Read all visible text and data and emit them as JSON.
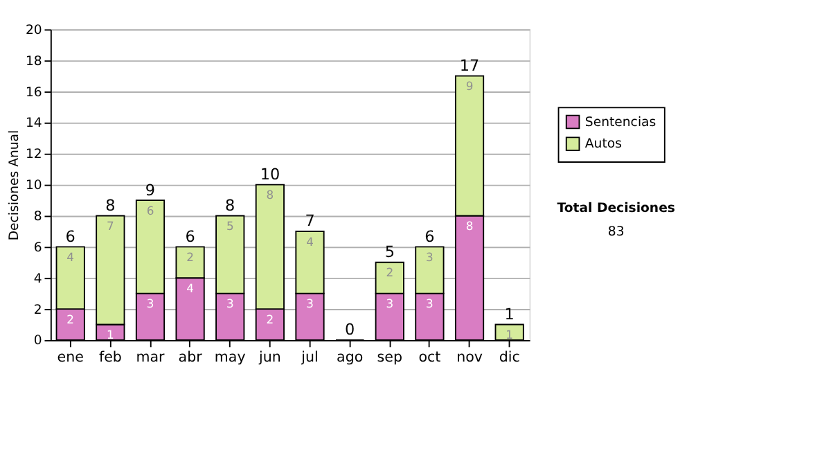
{
  "chart_data": {
    "type": "bar",
    "stacked": true,
    "ylabel": "Decisiones Anual",
    "categories": [
      "ene",
      "feb",
      "mar",
      "abr",
      "may",
      "jun",
      "jul",
      "ago",
      "sep",
      "oct",
      "nov",
      "dic"
    ],
    "series": [
      {
        "name": "Sentencias",
        "color": "#d97dc3",
        "values": [
          2,
          1,
          3,
          4,
          3,
          2,
          3,
          0,
          3,
          3,
          8,
          0
        ],
        "value_labels": [
          "2",
          "1",
          "3",
          "4",
          "3",
          "2",
          "3",
          null,
          "3",
          "3",
          "8",
          null
        ]
      },
      {
        "name": "Autos",
        "color": "#d5eb9c",
        "values": [
          4,
          7,
          6,
          2,
          5,
          8,
          4,
          0,
          2,
          3,
          9,
          1
        ],
        "value_labels": [
          "4",
          "7",
          "6",
          "2",
          "5",
          "8",
          "4",
          null,
          "2",
          "3",
          "9",
          "1"
        ]
      }
    ],
    "totals": [
      "6",
      "8",
      "9",
      "6",
      "8",
      "10",
      "7",
      "0",
      "5",
      "6",
      "17",
      "1"
    ],
    "ylim": [
      0,
      20
    ],
    "yticks": [
      0,
      2,
      4,
      6,
      8,
      10,
      12,
      14,
      16,
      18,
      20
    ],
    "grid": "y",
    "legend": "right",
    "annotations": [
      "Total Decisiones",
      "83"
    ]
  }
}
